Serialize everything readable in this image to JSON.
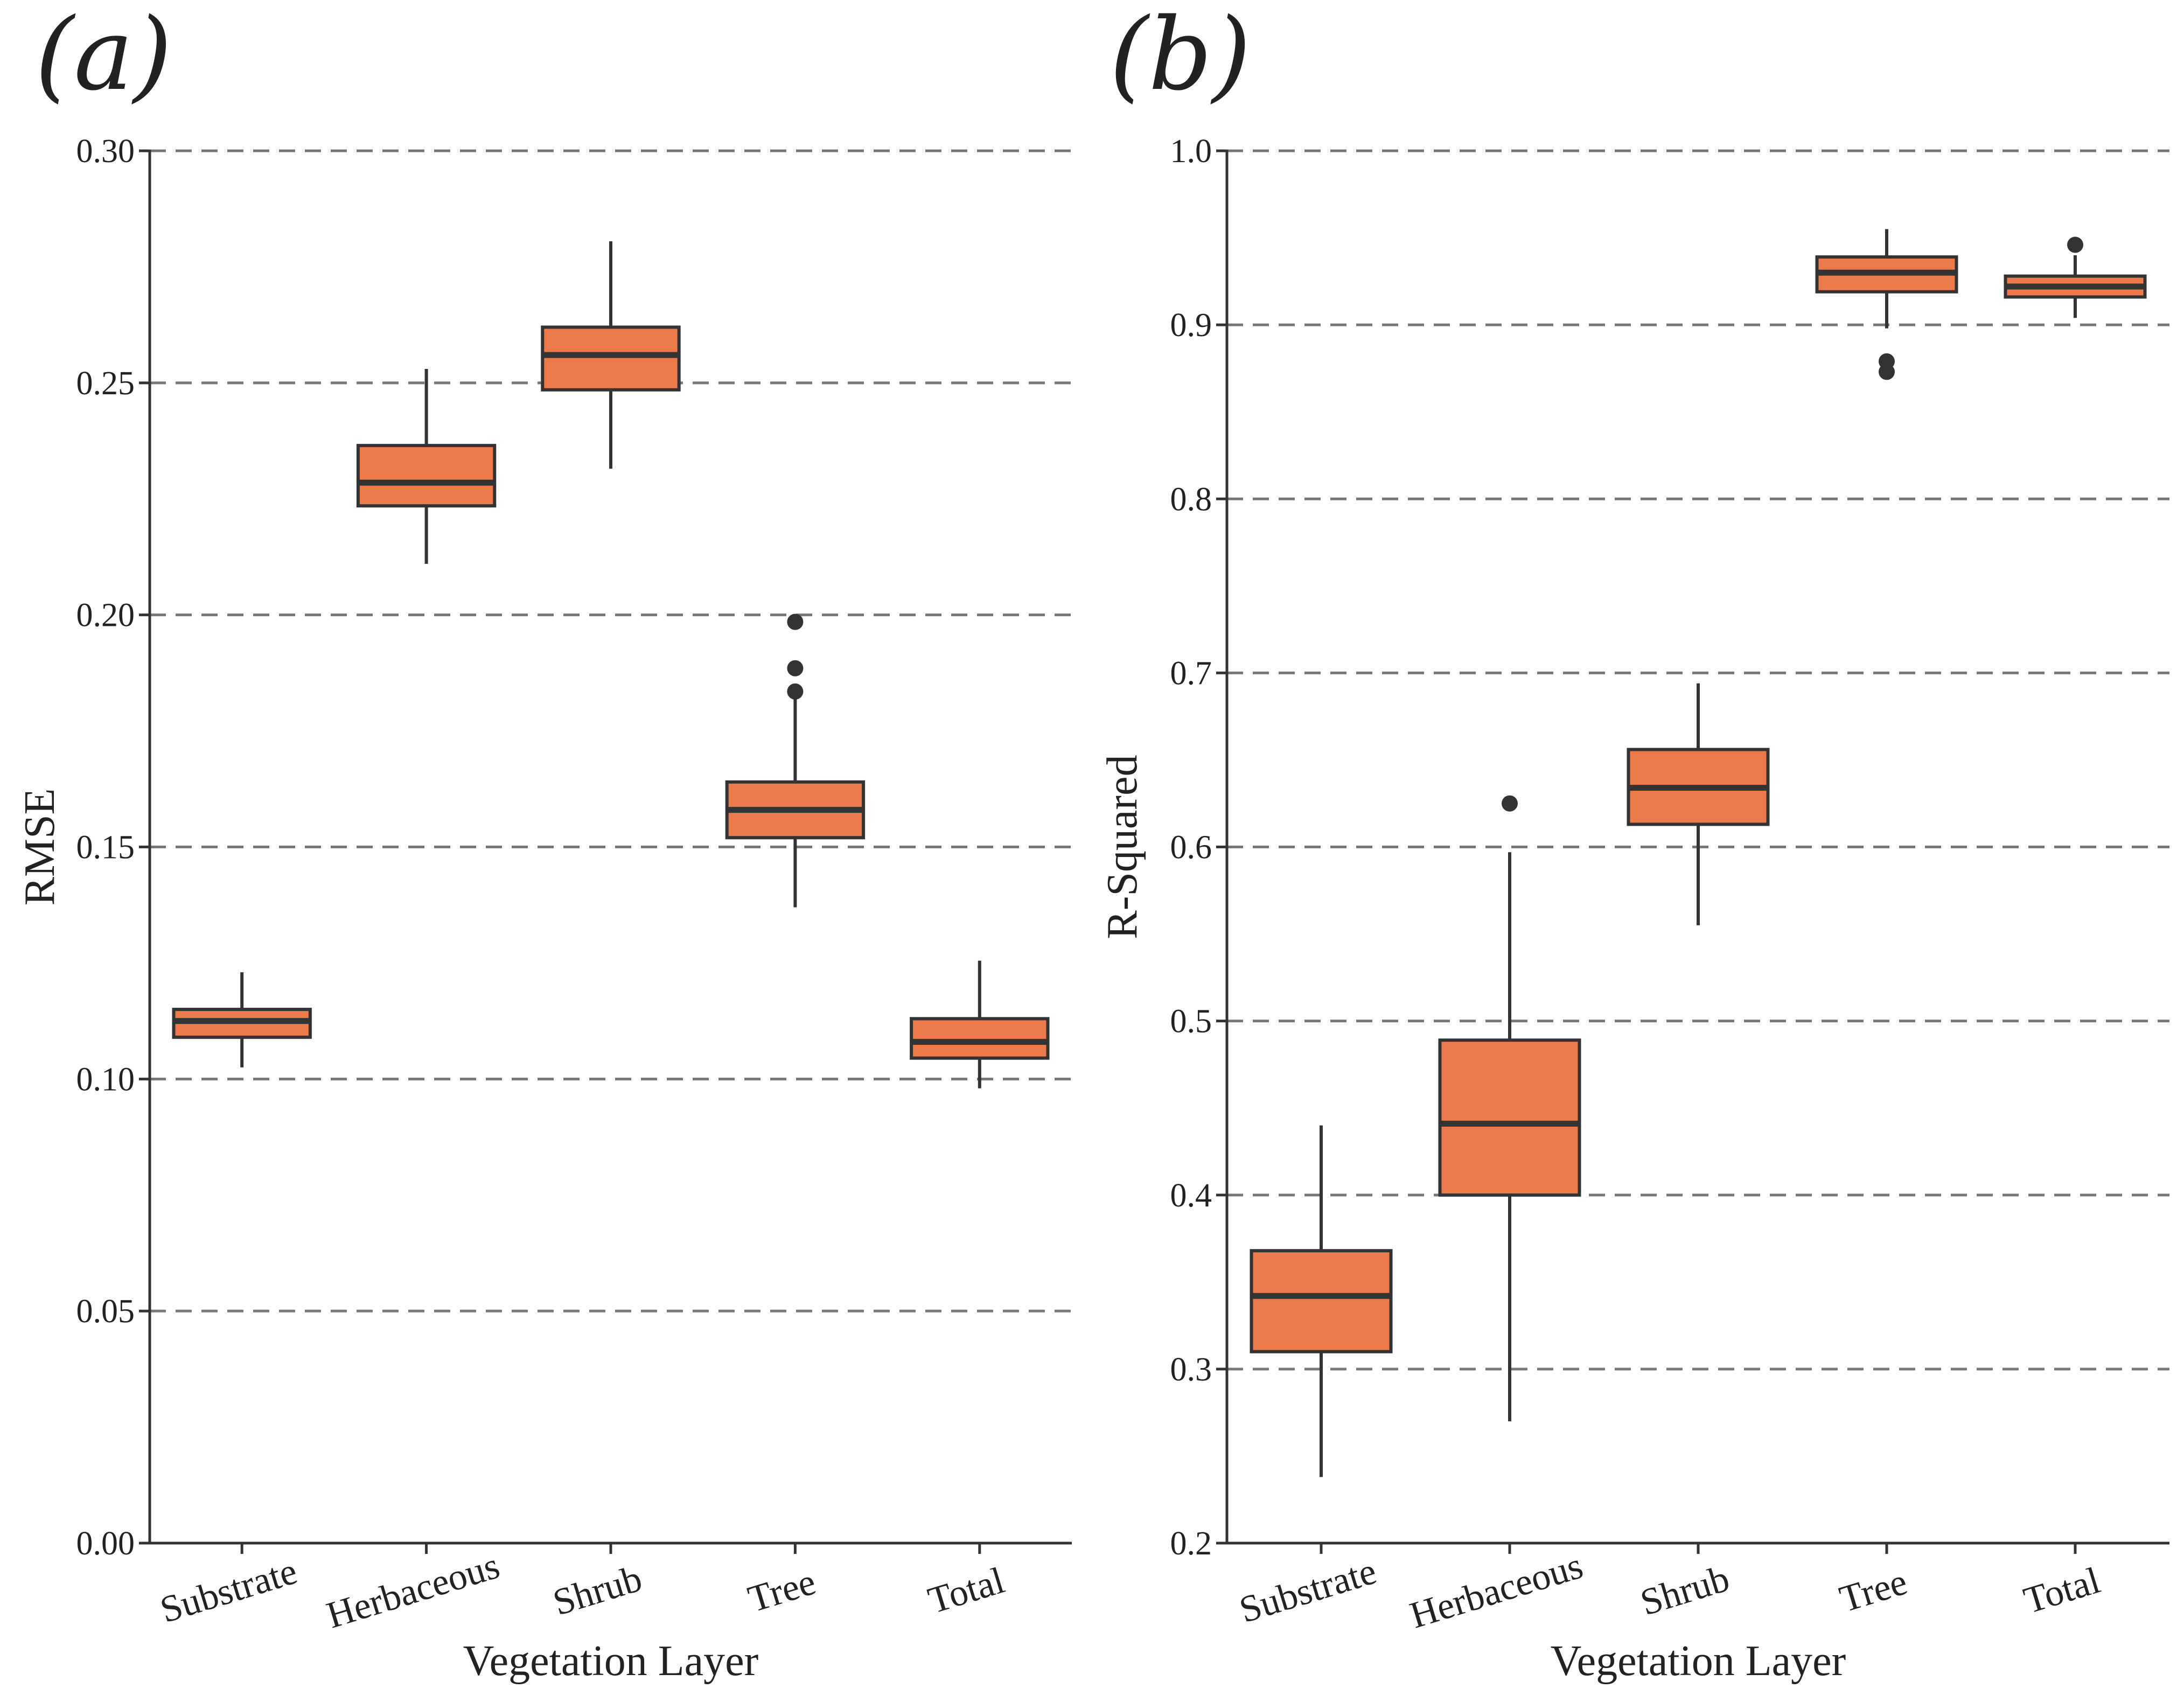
{
  "colors": {
    "box_fill": "#ec7a4a",
    "stroke": "#333333",
    "grid": "#777777"
  },
  "chart_data": [
    {
      "type": "boxplot",
      "panel_label": "(a)",
      "xlabel": "Vegetation Layer",
      "ylabel": "RMSE",
      "ylim": [
        0.0,
        0.3
      ],
      "yticks": [
        "0.00",
        "0.05",
        "0.10",
        "0.15",
        "0.20",
        "0.25",
        "0.30"
      ],
      "grid": "horizontal-dashed",
      "categories": [
        "Substrate",
        "Herbaceous",
        "Shrub",
        "Tree",
        "Total"
      ],
      "boxes": [
        {
          "whislo": 0.1025,
          "q1": 0.109,
          "med": 0.1125,
          "q3": 0.115,
          "whishi": 0.123,
          "fliers": []
        },
        {
          "whislo": 0.211,
          "q1": 0.2235,
          "med": 0.2285,
          "q3": 0.2365,
          "whishi": 0.253,
          "fliers": []
        },
        {
          "whislo": 0.2315,
          "q1": 0.2485,
          "med": 0.256,
          "q3": 0.262,
          "whishi": 0.2805,
          "fliers": []
        },
        {
          "whislo": 0.137,
          "q1": 0.152,
          "med": 0.158,
          "q3": 0.164,
          "whishi": 0.1825,
          "fliers": [
            0.1835,
            0.1885,
            0.1985
          ]
        },
        {
          "whislo": 0.098,
          "q1": 0.1045,
          "med": 0.108,
          "q3": 0.113,
          "whishi": 0.1255,
          "fliers": []
        }
      ]
    },
    {
      "type": "boxplot",
      "panel_label": "(b)",
      "xlabel": "Vegetation Layer",
      "ylabel": "R-Squared",
      "ylim": [
        0.2,
        1.0
      ],
      "yticks": [
        "0.2",
        "0.3",
        "0.4",
        "0.5",
        "0.6",
        "0.7",
        "0.8",
        "0.9",
        "1.0"
      ],
      "grid": "horizontal-dashed",
      "categories": [
        "Substrate",
        "Herbaceous",
        "Shrub",
        "Tree",
        "Total"
      ],
      "boxes": [
        {
          "whislo": 0.238,
          "q1": 0.31,
          "med": 0.342,
          "q3": 0.368,
          "whishi": 0.44,
          "fliers": []
        },
        {
          "whislo": 0.27,
          "q1": 0.4,
          "med": 0.441,
          "q3": 0.489,
          "whishi": 0.597,
          "fliers": [
            0.625
          ]
        },
        {
          "whislo": 0.555,
          "q1": 0.613,
          "med": 0.634,
          "q3": 0.656,
          "whishi": 0.694,
          "fliers": []
        },
        {
          "whislo": 0.898,
          "q1": 0.919,
          "med": 0.93,
          "q3": 0.939,
          "whishi": 0.955,
          "fliers": [
            0.873,
            0.879
          ]
        },
        {
          "whislo": 0.904,
          "q1": 0.916,
          "med": 0.922,
          "q3": 0.928,
          "whishi": 0.94,
          "fliers": [
            0.946
          ]
        }
      ]
    }
  ]
}
